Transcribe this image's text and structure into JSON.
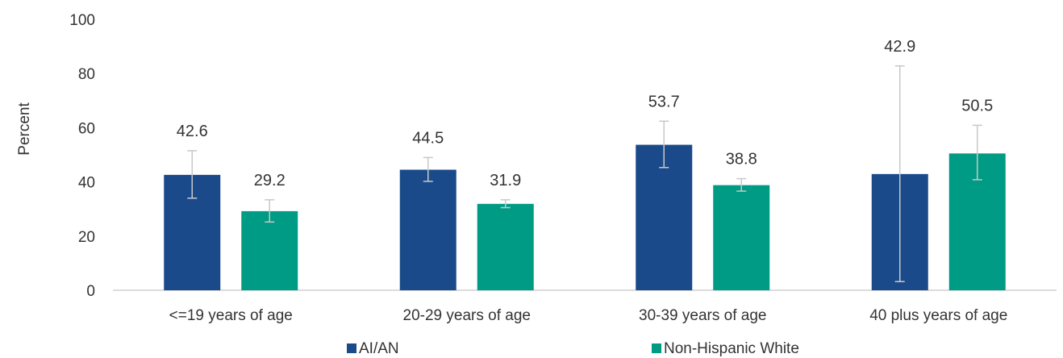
{
  "chart_data": {
    "type": "bar",
    "title": "",
    "xlabel": "",
    "ylabel": "Percent",
    "ylim": [
      0,
      100
    ],
    "yticks": [
      0,
      20,
      40,
      60,
      80,
      100
    ],
    "grid": false,
    "legend_position": "bottom",
    "categories": [
      "<=19 years of age",
      "20-29 years of age",
      "30-39 years of age",
      "40 plus years of age"
    ],
    "series": [
      {
        "name": "AI/AN",
        "color": "#1b4a8a",
        "values": [
          42.6,
          44.5,
          53.7,
          42.9
        ],
        "labels": [
          "42.6",
          "44.5",
          "53.7",
          "42.9"
        ],
        "error_low": [
          34,
          40.2,
          45.3,
          3.2
        ],
        "error_high": [
          51.5,
          49,
          62.4,
          82.8
        ]
      },
      {
        "name": "Non-Hispanic White",
        "color": "#009b84",
        "values": [
          29.2,
          31.9,
          38.8,
          50.5
        ],
        "labels": [
          "29.2",
          "31.9",
          "38.8",
          "50.5"
        ],
        "error_low": [
          25.2,
          30.5,
          36.6,
          40.8
        ],
        "error_high": [
          33.4,
          33.4,
          41.2,
          60.9
        ]
      }
    ]
  }
}
